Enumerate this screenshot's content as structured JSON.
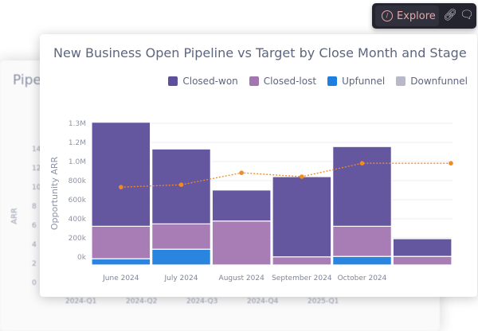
{
  "background_card": {
    "title": "Pipel",
    "ylabel": "ARR",
    "yticks": [
      "14",
      "12",
      "10",
      "8",
      "6",
      "4",
      "2",
      "0"
    ],
    "xticks": [
      "2024-Q1",
      "2024-Q2",
      "2024-Q3",
      "2024-Q4",
      "2025-Q1"
    ]
  },
  "toolbar": {
    "explore_label": "Explore",
    "icons": [
      "compass-icon",
      "link-icon",
      "comment-icon"
    ]
  },
  "chart_data": {
    "type": "bar",
    "stacked": true,
    "title": "New Business Open Pipeline vs Target by Close Month and Stage",
    "ylabel": "Opportunity ARR",
    "xlabel": "",
    "yticks": [
      "1.3M",
      "1.2M",
      "1.0M",
      "800k",
      "600k",
      "400k",
      "200k",
      "0k"
    ],
    "categories": [
      "June 2024",
      "July 2024",
      "August 2024",
      "September 2024",
      "October 2024",
      ""
    ],
    "legend_position": "top-right",
    "grid": true,
    "series": [
      {
        "name": "Upfunnel",
        "color": "#1f7fe0",
        "values": [
          65000,
          165000,
          0,
          0,
          90000,
          0
        ]
      },
      {
        "name": "Closed-lost",
        "color": "#a476b0",
        "values": [
          340000,
          265000,
          460000,
          85000,
          315000,
          90000
        ]
      },
      {
        "name": "Closed-won",
        "color": "#5d4f9a",
        "values": [
          1090000,
          785000,
          325000,
          840000,
          835000,
          185000
        ]
      },
      {
        "name": "Downfunnel",
        "color": "#b8b9c8",
        "values": [
          0,
          0,
          0,
          0,
          0,
          0
        ]
      }
    ],
    "legend_order": [
      "Closed-won",
      "Closed-lost",
      "Upfunnel",
      "Downfunnel"
    ],
    "target_line": {
      "color": "#f08a24",
      "values": [
        815000,
        840000,
        965000,
        925000,
        1065000,
        1065000
      ]
    }
  }
}
